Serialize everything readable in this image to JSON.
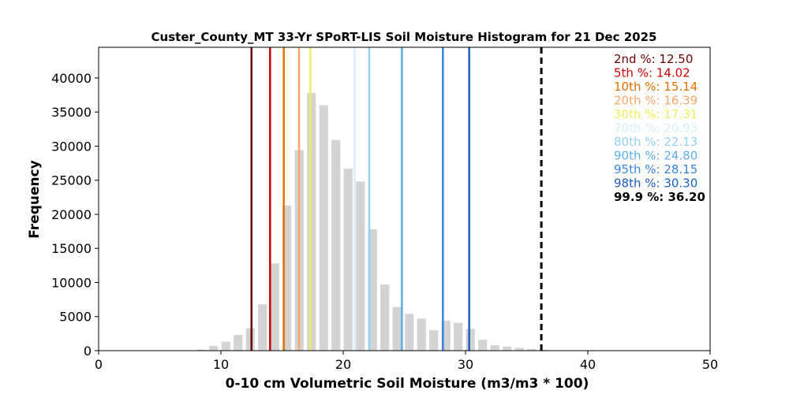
{
  "chart_data": {
    "type": "bar",
    "title": "Custer_County_MT 33-Yr SPoRT-LIS Soil Moisture Histogram for 21 Dec 2025",
    "xlabel": "0-10 cm Volumetric Soil Moisture (m3/m3 * 100)",
    "ylabel": "Frequency",
    "xlim": [
      0,
      50
    ],
    "ylim": [
      0,
      44500
    ],
    "xticks": [
      "0",
      "10",
      "20",
      "30",
      "40",
      "50"
    ],
    "yticks": [
      "0",
      "5000",
      "10000",
      "15000",
      "20000",
      "25000",
      "30000",
      "35000",
      "40000"
    ],
    "bar_color": "#d3d3d3",
    "bins": [
      {
        "x": 8.4,
        "value": 150
      },
      {
        "x": 9.4,
        "value": 700
      },
      {
        "x": 10.4,
        "value": 1300
      },
      {
        "x": 11.4,
        "value": 2300
      },
      {
        "x": 12.4,
        "value": 3300
      },
      {
        "x": 13.4,
        "value": 6800
      },
      {
        "x": 14.4,
        "value": 12800
      },
      {
        "x": 15.4,
        "value": 21300
      },
      {
        "x": 16.4,
        "value": 29400
      },
      {
        "x": 17.4,
        "value": 37800
      },
      {
        "x": 18.4,
        "value": 36000
      },
      {
        "x": 19.4,
        "value": 30900
      },
      {
        "x": 20.4,
        "value": 26700
      },
      {
        "x": 21.4,
        "value": 24800
      },
      {
        "x": 22.4,
        "value": 17800
      },
      {
        "x": 23.4,
        "value": 9700
      },
      {
        "x": 24.4,
        "value": 6400
      },
      {
        "x": 25.4,
        "value": 5400
      },
      {
        "x": 26.4,
        "value": 4700
      },
      {
        "x": 27.4,
        "value": 3000
      },
      {
        "x": 28.4,
        "value": 4400
      },
      {
        "x": 29.4,
        "value": 4100
      },
      {
        "x": 30.4,
        "value": 3200
      },
      {
        "x": 31.4,
        "value": 1600
      },
      {
        "x": 32.4,
        "value": 800
      },
      {
        "x": 33.4,
        "value": 600
      },
      {
        "x": 34.4,
        "value": 400
      },
      {
        "x": 35.4,
        "value": 250
      },
      {
        "x": 36.4,
        "value": 120
      },
      {
        "x": 37.4,
        "value": 50
      }
    ],
    "percentiles": [
      {
        "label": "2nd %",
        "value": 12.5,
        "text": "12.50",
        "color": "#6b0000",
        "dashed": false
      },
      {
        "label": "5th %",
        "value": 14.02,
        "text": "14.02",
        "color": "#cc0000",
        "dashed": false
      },
      {
        "label": "10th %",
        "value": 15.14,
        "text": "15.14",
        "color": "#e07000",
        "dashed": false
      },
      {
        "label": "20th %",
        "value": 16.39,
        "text": "16.39",
        "color": "#f5a86a",
        "dashed": false
      },
      {
        "label": "30th %",
        "value": 17.31,
        "text": "17.31",
        "color": "#f2ee60",
        "dashed": false
      },
      {
        "label": "70th %",
        "value": 20.93,
        "text": "20.93",
        "color": "#d5f1fb",
        "dashed": false
      },
      {
        "label": "80th %",
        "value": 22.13,
        "text": "22.13",
        "color": "#95d2ee",
        "dashed": false
      },
      {
        "label": "90th %",
        "value": 24.8,
        "text": "24.80",
        "color": "#5faee8",
        "dashed": false
      },
      {
        "label": "95th %",
        "value": 28.15,
        "text": "28.15",
        "color": "#3885e0",
        "dashed": false
      },
      {
        "label": "98th %",
        "value": 30.3,
        "text": "30.30",
        "color": "#1c5fc2",
        "dashed": false
      },
      {
        "label": "99.9 %",
        "value": 36.2,
        "text": "36.20",
        "color": "#000000",
        "dashed": true
      }
    ],
    "legend_placement": "top-right",
    "grid": false
  }
}
